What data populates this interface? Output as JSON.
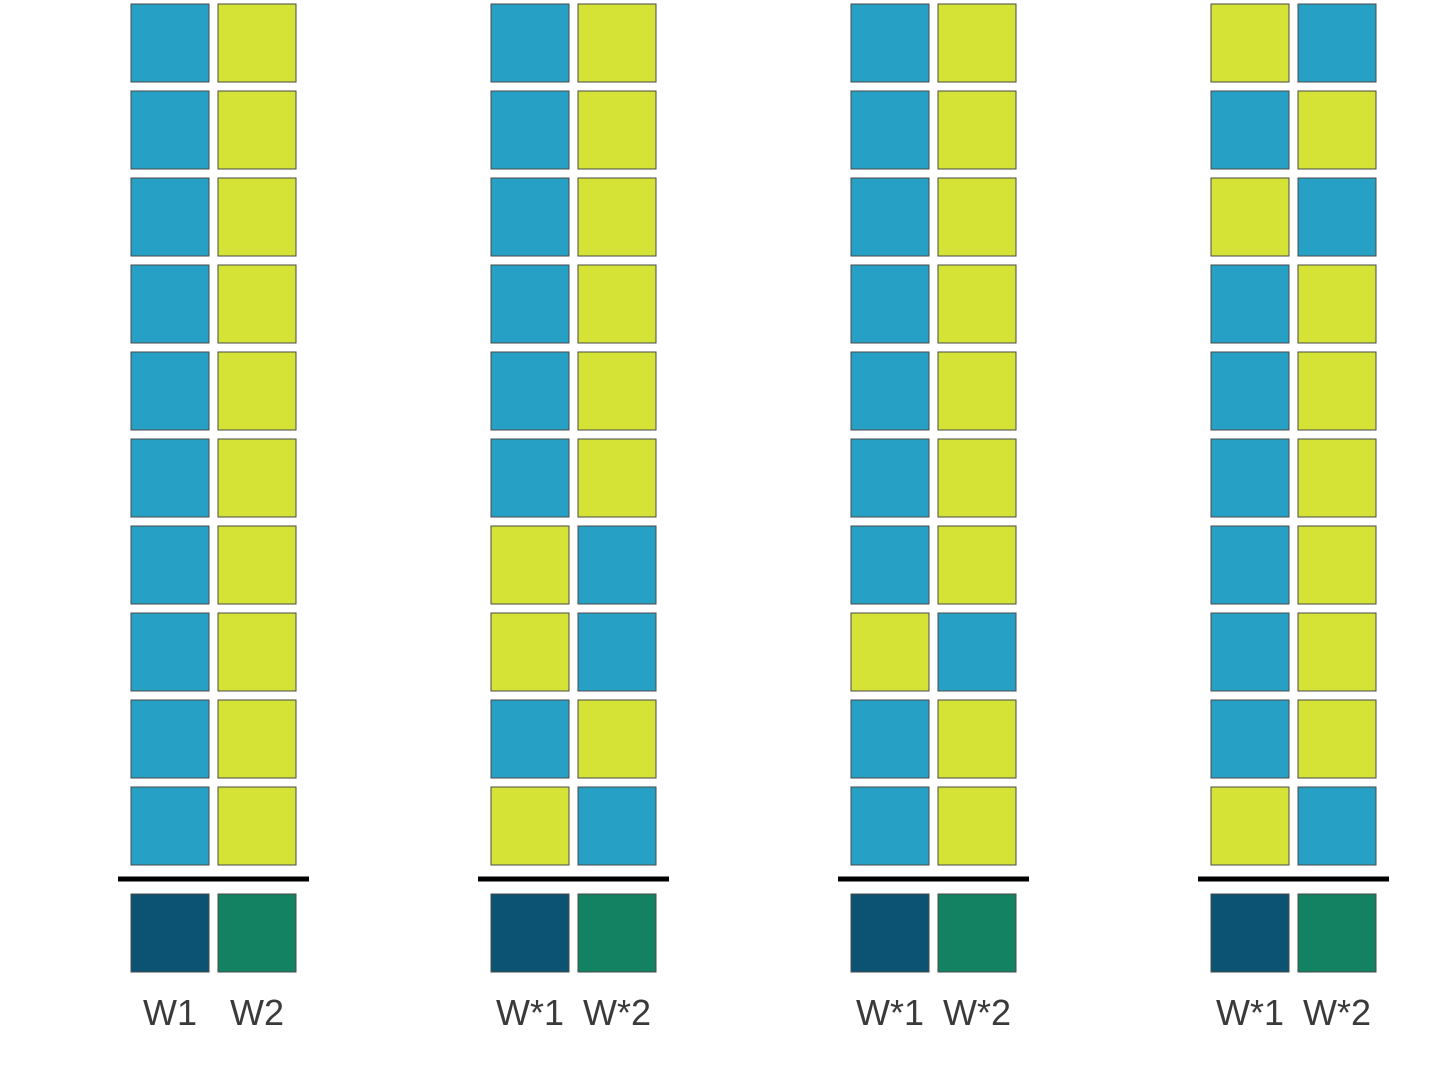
{
  "colors": {
    "blue": "#26a0c4",
    "yellow": "#d4e335",
    "dark_blue": "#0b5273",
    "dark_green": "#128262",
    "cell_border": "#4a4a4a",
    "separator": "#000000"
  },
  "groups": [
    {
      "labels": [
        "W1",
        "W2"
      ],
      "rows": [
        [
          "blue",
          "yellow"
        ],
        [
          "blue",
          "yellow"
        ],
        [
          "blue",
          "yellow"
        ],
        [
          "blue",
          "yellow"
        ],
        [
          "blue",
          "yellow"
        ],
        [
          "blue",
          "yellow"
        ],
        [
          "blue",
          "yellow"
        ],
        [
          "blue",
          "yellow"
        ],
        [
          "blue",
          "yellow"
        ],
        [
          "blue",
          "yellow"
        ]
      ],
      "result": [
        "dark_blue",
        "dark_green"
      ]
    },
    {
      "labels": [
        "W*1",
        "W*2"
      ],
      "rows": [
        [
          "blue",
          "yellow"
        ],
        [
          "blue",
          "yellow"
        ],
        [
          "blue",
          "yellow"
        ],
        [
          "blue",
          "yellow"
        ],
        [
          "blue",
          "yellow"
        ],
        [
          "blue",
          "yellow"
        ],
        [
          "yellow",
          "blue"
        ],
        [
          "yellow",
          "blue"
        ],
        [
          "blue",
          "yellow"
        ],
        [
          "yellow",
          "blue"
        ]
      ],
      "result": [
        "dark_blue",
        "dark_green"
      ]
    },
    {
      "labels": [
        "W*1",
        "W*2"
      ],
      "rows": [
        [
          "blue",
          "yellow"
        ],
        [
          "blue",
          "yellow"
        ],
        [
          "blue",
          "yellow"
        ],
        [
          "blue",
          "yellow"
        ],
        [
          "blue",
          "yellow"
        ],
        [
          "blue",
          "yellow"
        ],
        [
          "blue",
          "yellow"
        ],
        [
          "yellow",
          "blue"
        ],
        [
          "blue",
          "yellow"
        ],
        [
          "blue",
          "yellow"
        ]
      ],
      "result": [
        "dark_blue",
        "dark_green"
      ]
    },
    {
      "labels": [
        "W*1",
        "W*2"
      ],
      "rows": [
        [
          "yellow",
          "blue"
        ],
        [
          "blue",
          "yellow"
        ],
        [
          "yellow",
          "blue"
        ],
        [
          "blue",
          "yellow"
        ],
        [
          "blue",
          "yellow"
        ],
        [
          "blue",
          "yellow"
        ],
        [
          "blue",
          "yellow"
        ],
        [
          "blue",
          "yellow"
        ],
        [
          "blue",
          "yellow"
        ],
        [
          "yellow",
          "blue"
        ]
      ],
      "result": [
        "dark_blue",
        "dark_green"
      ]
    }
  ]
}
